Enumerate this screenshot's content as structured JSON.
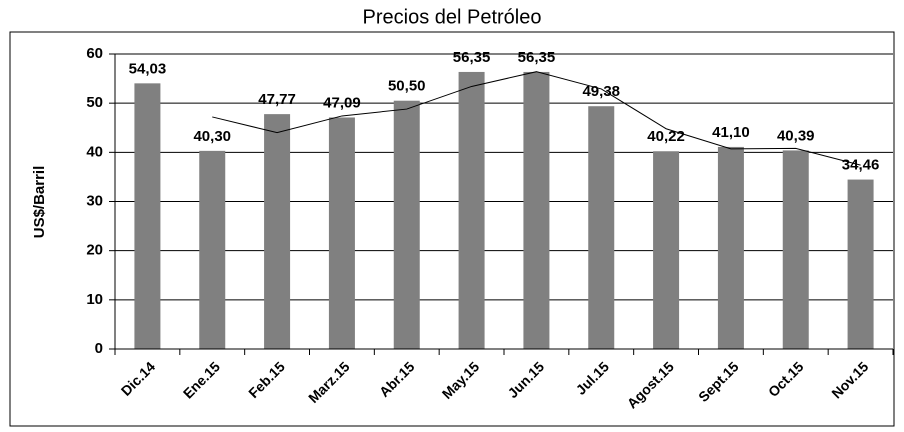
{
  "chart_data": {
    "type": "bar",
    "title": "Precios del Petróleo",
    "y_label": "US$/Barril",
    "categories": [
      "Dic.14",
      "Ene.15",
      "Feb.15",
      "Marz.15",
      "Abr.15",
      "May.15",
      "Jun.15",
      "Jul.15",
      "Agost.15",
      "Sept.15",
      "Oct.15",
      "Nov.15"
    ],
    "values": [
      54.03,
      40.3,
      47.77,
      47.09,
      50.5,
      56.35,
      56.35,
      49.38,
      40.22,
      41.1,
      40.39,
      34.46
    ],
    "value_labels": [
      "54,03",
      "40,30",
      "47,77",
      "47,09",
      "50,50",
      "56,35",
      "56,35",
      "49,38",
      "40,22",
      "41,10",
      "40,39",
      "34,46"
    ],
    "color": "#808080",
    "line_values": [
      null,
      47.2,
      44.0,
      47.4,
      48.8,
      53.4,
      56.4,
      52.9,
      44.8,
      40.7,
      40.8,
      37.4
    ],
    "line_color": "#000000",
    "ylim": [
      0,
      60
    ],
    "yticks": [
      0,
      10,
      20,
      30,
      40,
      50,
      60
    ],
    "grid": true
  }
}
